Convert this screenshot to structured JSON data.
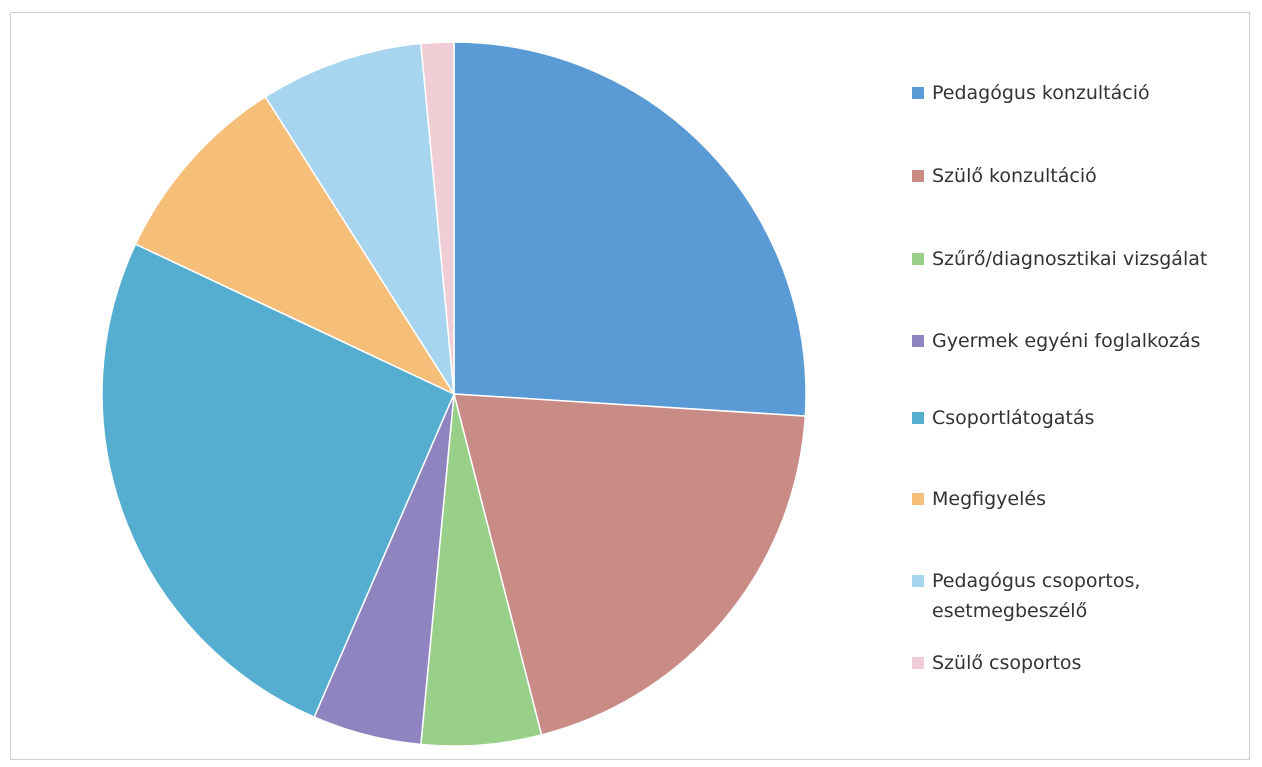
{
  "chart_data": {
    "type": "pie",
    "title": "",
    "slices": [
      {
        "label": "Pedagógus konzultáció",
        "value": 26,
        "color": "#5b9bd5"
      },
      {
        "label": "Szülő konzultáció",
        "value": 20,
        "color": "#c98b86"
      },
      {
        "label": "Szűrő/diagnosztikai vizsgálat",
        "value": 5.5,
        "color": "#98d08a"
      },
      {
        "label": "Gyermek egyéni foglalkozás",
        "value": 5,
        "color": "#8f84bf"
      },
      {
        "label": "Csoportlátogatás",
        "value": 25.5,
        "color": "#55aed0"
      },
      {
        "label": "Megfigyelés",
        "value": 9,
        "color": "#f5be79"
      },
      {
        "label": "Pedagógus csoportos, esetmegbeszélő",
        "value": 7.5,
        "color": "#a7d5ef"
      },
      {
        "label": "Szülő csoportos",
        "value": 1.5,
        "color": "#f0cdd5"
      }
    ],
    "legend_position": "right"
  },
  "legend": {
    "items": [
      {
        "label": "Pedagógus konzultáció",
        "color": "#5b9bd5"
      },
      {
        "label": "Szülő konzultáció",
        "color": "#c98b86"
      },
      {
        "label": "Szűrő/diagnosztikai vizsgálat",
        "color": "#98d08a"
      },
      {
        "label": "Gyermek egyéni foglalkozás",
        "color": "#8f84bf"
      },
      {
        "label": "Csoportlátogatás",
        "color": "#55aed0"
      },
      {
        "label": "Megfigyelés",
        "color": "#f5be79"
      },
      {
        "label": "Pedagógus csoportos, esetmegbeszélő",
        "color": "#a7d5ef"
      },
      {
        "label": "Szülő csoportos",
        "color": "#f0cdd5"
      }
    ]
  }
}
